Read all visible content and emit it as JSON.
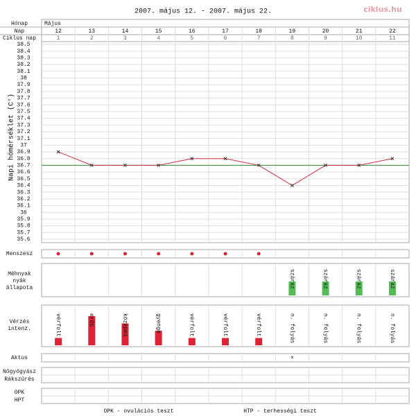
{
  "title": "2007. május 12. - 2007. május 22.",
  "logo": "ciklus.hu",
  "header": {
    "month_label": "Hónap",
    "month": "Május",
    "day_label": "Nap",
    "cycle_label": "Ciklus nap"
  },
  "days": [
    12,
    13,
    14,
    15,
    16,
    17,
    18,
    19,
    20,
    21,
    22
  ],
  "cycle_days": [
    1,
    2,
    3,
    4,
    5,
    6,
    7,
    8,
    9,
    10,
    11
  ],
  "chart_data": {
    "type": "line",
    "y_label": "Napi hőmérséklet (C°)",
    "values": [
      36.9,
      36.7,
      36.7,
      36.7,
      36.8,
      36.8,
      36.7,
      36.4,
      36.7,
      36.7,
      36.8
    ],
    "color": "#cc3344",
    "coverline": 36.7,
    "coverline_color": "#2e8b2e",
    "ylim": [
      35.6,
      38.5
    ],
    "yticks": [
      38.5,
      38.4,
      38.3,
      38.2,
      38.1,
      38,
      37.9,
      37.8,
      37.7,
      37.6,
      37.5,
      37.4,
      37.3,
      37.2,
      37.1,
      37,
      36.9,
      36.8,
      36.7,
      36.6,
      36.5,
      36.4,
      36.3,
      36.2,
      36.1,
      36,
      35.9,
      35.8,
      35.7,
      35.6
    ]
  },
  "menses": {
    "label": "Menszesz",
    "days": [
      true,
      true,
      true,
      true,
      true,
      true,
      true,
      false,
      false,
      false,
      false
    ]
  },
  "mucus": {
    "label_lines": [
      "Méhnyak",
      "nyák",
      "állapota"
    ],
    "values": [
      null,
      null,
      null,
      null,
      null,
      null,
      null,
      "száraz",
      "száraz",
      "száraz",
      "száraz"
    ]
  },
  "bleeding": {
    "label_lines": [
      "Vérzés",
      "intenz."
    ],
    "labels": [
      "vérfolt",
      "erős",
      "közepes",
      "gyenge",
      "vérfolt",
      "vérfolt",
      "vérfolt",
      "n. folyás",
      "n. folyás",
      "n. folyás",
      "n. folyás"
    ],
    "levels": [
      1,
      4,
      3,
      2,
      1,
      1,
      1,
      0,
      0,
      0,
      0
    ]
  },
  "aktus": {
    "label": "Aktus",
    "mark": "×",
    "days": [
      false,
      false,
      false,
      false,
      false,
      false,
      false,
      true,
      false,
      false,
      false
    ]
  },
  "exams": [
    "Nőgyógyász",
    "Rákszűrés"
  ],
  "tests": [
    "OPK",
    "HPT"
  ],
  "footer": [
    "OPK - ovulációs teszt",
    "HTP - terhességi teszt"
  ]
}
